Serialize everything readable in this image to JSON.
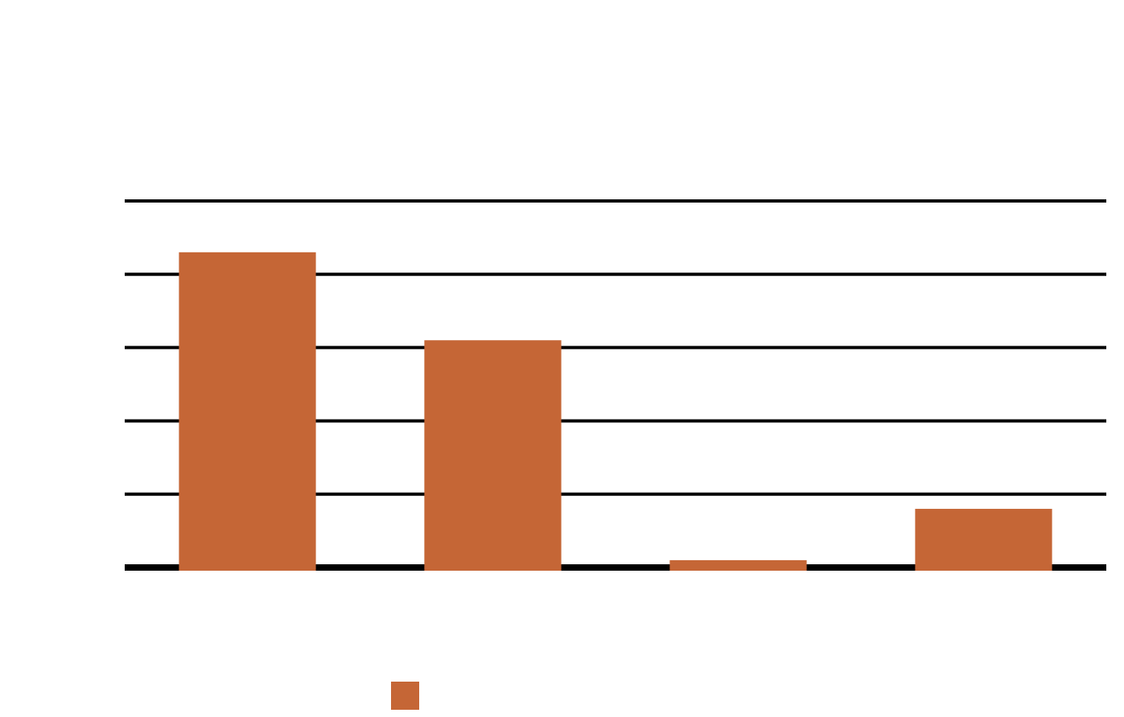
{
  "chart_data": {
    "type": "bar",
    "categories": [
      null,
      null,
      null,
      null
    ],
    "values": [
      4.3,
      3.1,
      0.1,
      0.8
    ],
    "color": "#c56636",
    "ylim": [
      0,
      5
    ],
    "yticks": [
      0,
      1,
      2,
      3,
      4,
      5
    ],
    "grid": true,
    "legend": "bottom"
  }
}
